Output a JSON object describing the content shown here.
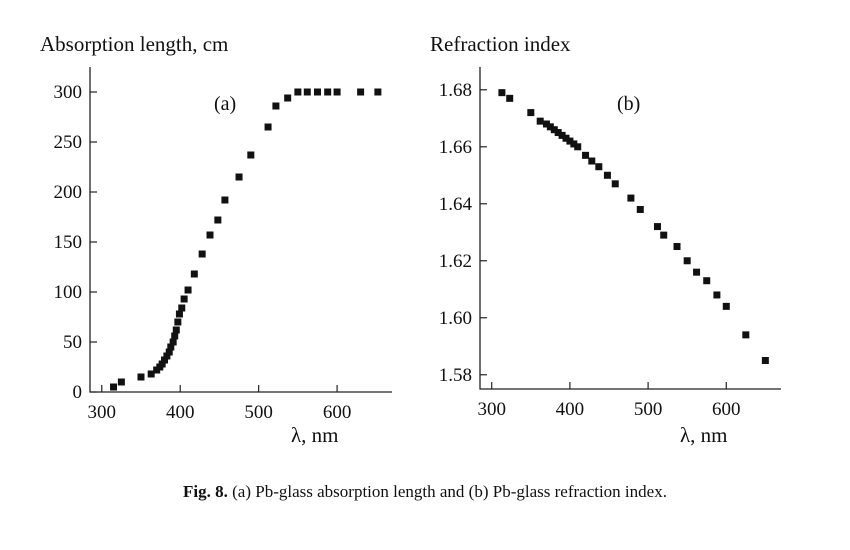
{
  "caption": {
    "label": "Fig. 8.",
    "text": " (a) Pb-glass absorption length and (b) Pb-glass refraction index."
  },
  "chart_data": [
    {
      "type": "scatter",
      "panel": "(a)",
      "ylabel": "Absorption length, cm",
      "xlabel": "λ, nm",
      "xlim": [
        285,
        670
      ],
      "ylim": [
        0,
        325
      ],
      "xticks": [
        300,
        400,
        500,
        600
      ],
      "yticks": [
        0,
        50,
        100,
        150,
        200,
        250,
        300
      ],
      "x": [
        315,
        325,
        350,
        363,
        370,
        374,
        377,
        380,
        383,
        386,
        388,
        391,
        393,
        395,
        397,
        399,
        402,
        405,
        410,
        418,
        428,
        438,
        448,
        457,
        475,
        490,
        512,
        522,
        537,
        550,
        562,
        575,
        588,
        600,
        630,
        652
      ],
      "y": [
        5,
        10,
        15,
        18,
        22,
        25,
        28,
        32,
        36,
        40,
        45,
        50,
        56,
        62,
        70,
        78,
        84,
        93,
        102,
        118,
        138,
        157,
        172,
        192,
        215,
        237,
        265,
        286,
        294,
        300,
        300,
        300,
        300,
        300,
        300,
        300
      ]
    },
    {
      "type": "scatter",
      "panel": "(b)",
      "ylabel": "Refraction index",
      "xlabel": "λ, nm",
      "xlim": [
        285,
        670
      ],
      "ylim": [
        1.575,
        1.688
      ],
      "xticks": [
        300,
        400,
        500,
        600
      ],
      "yticks": [
        "1.58",
        "1.60",
        "1.62",
        "1.64",
        "1.66",
        "1.68"
      ],
      "x": [
        313,
        323,
        350,
        362,
        370,
        375,
        380,
        385,
        390,
        395,
        400,
        405,
        410,
        420,
        428,
        437,
        448,
        458,
        478,
        490,
        512,
        520,
        537,
        550,
        562,
        575,
        588,
        600,
        625,
        650
      ],
      "y": [
        1.679,
        1.677,
        1.672,
        1.669,
        1.668,
        1.667,
        1.666,
        1.665,
        1.664,
        1.663,
        1.662,
        1.661,
        1.66,
        1.657,
        1.655,
        1.653,
        1.65,
        1.647,
        1.642,
        1.638,
        1.632,
        1.629,
        1.625,
        1.62,
        1.616,
        1.613,
        1.608,
        1.604,
        1.594,
        1.585
      ]
    }
  ]
}
